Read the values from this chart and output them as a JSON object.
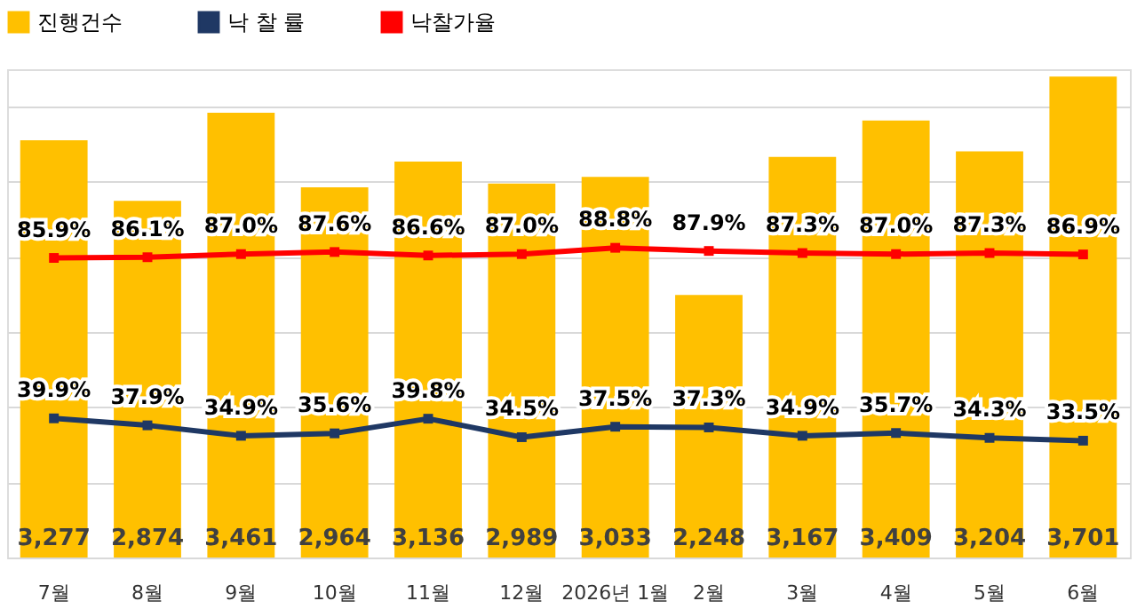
{
  "chart_data": {
    "type": "bar",
    "categories": [
      "7월",
      "8월",
      "9월",
      "10월",
      "11월",
      "12월",
      "2026년 1월",
      "2월",
      "3월",
      "4월",
      "5월",
      "6월"
    ],
    "ylim": [
      500,
      3750
    ],
    "yticks": [
      {
        "value": 500,
        "label": null
      },
      {
        "value": 1000,
        "label": null
      },
      {
        "value": 1500,
        "label": null
      },
      {
        "value": 2000,
        "label": null
      },
      {
        "value": 2500,
        "label": null
      },
      {
        "value": 3000,
        "label": null
      },
      {
        "value": 3500,
        "label": null
      }
    ],
    "y2lim": [
      0,
      140
    ],
    "grid": "y",
    "legend": "top",
    "tick_labels": "x",
    "series": [
      {
        "name": "진행건수",
        "color": "#ffc000",
        "values": [
          3277,
          2874,
          3461,
          2964,
          3136,
          2989,
          3033,
          2248,
          3167,
          3409,
          3204,
          3701
        ],
        "value_labels": [
          "3,277",
          "2,874",
          "3,461",
          "2,964",
          "3,136",
          "2,989",
          "3,033",
          "2,248",
          "3,167",
          "3,409",
          "3,204",
          "3,701"
        ]
      },
      {
        "name": "낙 찰 률",
        "type": "line",
        "axis": "y2",
        "marker": "square",
        "color": "#1f3864",
        "values": [
          39.9,
          37.9,
          34.9,
          35.6,
          39.8,
          34.5,
          37.5,
          37.3,
          34.9,
          35.7,
          34.3,
          33.5
        ],
        "value_labels": [
          "39.9%",
          "37.9%",
          "34.9%",
          "35.6%",
          "39.8%",
          "34.5%",
          "37.5%",
          "37.3%",
          "34.9%",
          "35.7%",
          "34.3%",
          "33.5%"
        ]
      },
      {
        "name": "낙찰가율",
        "type": "line",
        "axis": "y2",
        "marker": "square",
        "color": "#ff0000",
        "values": [
          85.9,
          86.1,
          87.0,
          87.6,
          86.6,
          87.0,
          88.8,
          87.9,
          87.3,
          87.0,
          87.3,
          86.9
        ],
        "value_labels": [
          "85.9%",
          "86.1%",
          "87.0%",
          "87.6%",
          "86.6%",
          "87.0%",
          "88.8%",
          "87.9%",
          "87.3%",
          "87.0%",
          "87.3%",
          "86.9%"
        ]
      }
    ]
  }
}
